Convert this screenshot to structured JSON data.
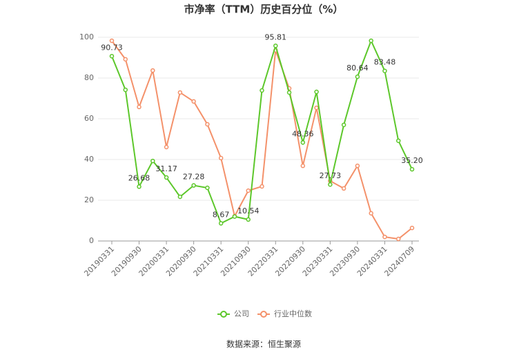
{
  "chart_data": {
    "type": "line",
    "title": "市净率（TTM）历史百分位（%）",
    "categories": [
      "20190331",
      null,
      "20190930",
      null,
      "20200331",
      null,
      "20200930",
      null,
      "20210331",
      null,
      "20210930",
      null,
      "20220331",
      null,
      "20220930",
      null,
      "20230331",
      null,
      "20230930",
      null,
      "20240331",
      null,
      "20240709"
    ],
    "series": [
      {
        "name": "公司",
        "color": "#5cc72a",
        "values": [
          90.73,
          74.2,
          26.68,
          39.3,
          31.17,
          21.7,
          27.28,
          26.1,
          8.67,
          12.0,
          10.54,
          73.9,
          95.81,
          72.9,
          48.36,
          73.2,
          27.73,
          57.0,
          80.64,
          98.3,
          83.48,
          49.2,
          35.2
        ],
        "value_labels": [
          "90.73",
          null,
          "26.68",
          null,
          "31.17",
          null,
          "27.28",
          null,
          "8.67",
          null,
          "10.54",
          null,
          "95.81",
          null,
          "48.36",
          null,
          "27.73",
          null,
          "80.64",
          null,
          "83.48",
          null,
          "35.20"
        ]
      },
      {
        "name": "行业中位数",
        "color": "#f4916a",
        "values": [
          98.3,
          89.2,
          65.8,
          83.7,
          46.1,
          72.9,
          68.5,
          57.3,
          40.7,
          12.2,
          24.7,
          26.8,
          93.6,
          74.9,
          36.9,
          65.4,
          29.5,
          25.8,
          36.9,
          13.6,
          2.0,
          1.0,
          6.4
        ]
      }
    ],
    "ylim": [
      0,
      100
    ],
    "yticks": [
      0,
      20,
      40,
      60,
      80,
      100
    ],
    "grid": true,
    "source": "数据来源：恒生聚源"
  }
}
